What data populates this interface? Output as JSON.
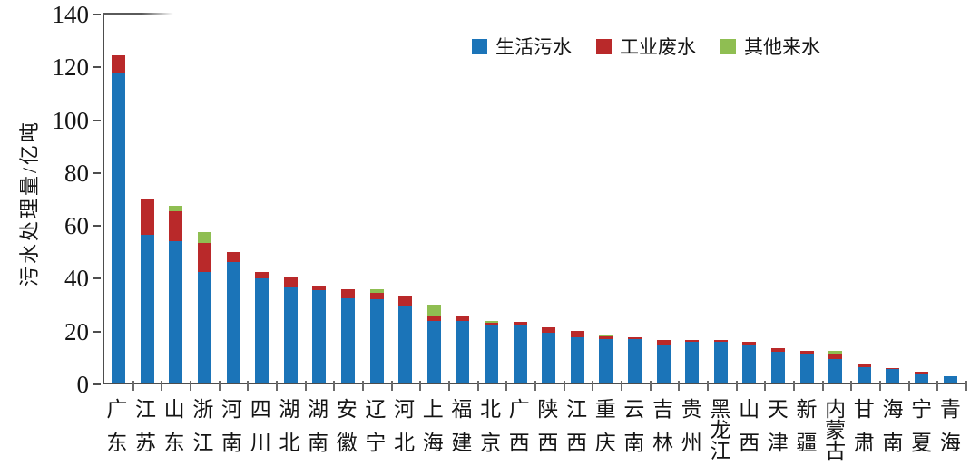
{
  "figure": {
    "background": "#ffffff",
    "axis_color": "#4d4d4d"
  },
  "chart_data": {
    "type": "bar",
    "stacked": true,
    "title": "",
    "xlabel": "",
    "ylabel": "污水处理量/亿吨",
    "ylim": [
      0,
      140
    ],
    "yticks": [
      0,
      20,
      40,
      60,
      80,
      100,
      120,
      140
    ],
    "grid": false,
    "legend_position": "top-center-inside",
    "categories": [
      "广东",
      "江苏",
      "山东",
      "浙江",
      "河南",
      "四川",
      "湖北",
      "湖南",
      "安徽",
      "辽宁",
      "河北",
      "上海",
      "福建",
      "北京",
      "广西",
      "陕西",
      "江西",
      "重庆",
      "云南",
      "吉林",
      "贵州",
      "黑龙江",
      "山西",
      "天津",
      "新疆",
      "内蒙古",
      "甘肃",
      "海南",
      "宁夏",
      "青海"
    ],
    "series": [
      {
        "name": "生活污水",
        "color": "#1b74b8",
        "values": [
          117.5,
          56,
          53.5,
          42,
          45.5,
          39.5,
          36,
          35,
          32,
          31.5,
          29,
          23.5,
          23.5,
          21.5,
          21.5,
          19,
          17,
          16.5,
          16.5,
          14.5,
          15.5,
          15.3,
          14.5,
          11.7,
          10.5,
          9,
          6,
          5.3,
          3,
          2.3
        ]
      },
      {
        "name": "工业废水",
        "color": "#b9292a",
        "values": [
          6.5,
          13.5,
          11.5,
          11,
          4,
          2.5,
          4,
          1.5,
          3.5,
          2.5,
          3.5,
          1.5,
          2,
          1,
          1.5,
          2,
          2.5,
          1,
          0.5,
          1.5,
          0.5,
          0.7,
          1,
          1.3,
          1.5,
          1.7,
          1,
          0.2,
          1.2,
          0.2
        ]
      },
      {
        "name": "其他来水",
        "color": "#8fbe52",
        "values": [
          0,
          0,
          2,
          4,
          0,
          0,
          0,
          0,
          0,
          1.5,
          0,
          4.5,
          0,
          0.7,
          0,
          0,
          0,
          0.5,
          0,
          0,
          0,
          0,
          0,
          0,
          0,
          1.3,
          0,
          0,
          0,
          0
        ]
      }
    ]
  }
}
